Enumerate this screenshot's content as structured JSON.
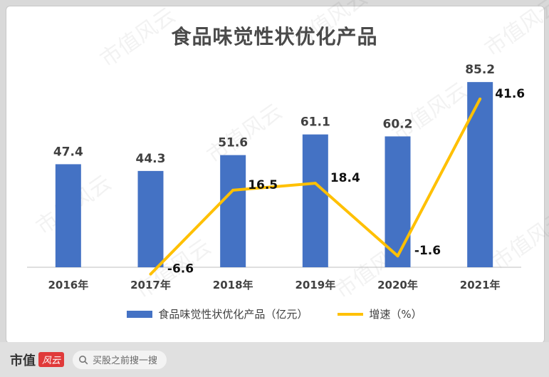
{
  "chart_data": {
    "type": "bar",
    "title": "食品味觉性状优化产品",
    "categories": [
      "2016年",
      "2017年",
      "2018年",
      "2019年",
      "2020年",
      "2021年"
    ],
    "series": [
      {
        "name": "食品味觉性状优化产品（亿元）",
        "type": "bar",
        "color": "#4472c4",
        "values": [
          47.4,
          44.3,
          51.6,
          61.1,
          60.2,
          85.2
        ],
        "labels": [
          "47.4",
          "44.3",
          "51.6",
          "61.1",
          "60.2",
          "85.2"
        ]
      },
      {
        "name": "增速（%）",
        "type": "line",
        "color": "#ffc000",
        "values": [
          null,
          -6.6,
          16.5,
          18.4,
          -1.6,
          41.6
        ],
        "labels": [
          "",
          "-6.6",
          "16.5",
          "18.4",
          "-1.6",
          "41.6"
        ]
      }
    ],
    "grid": false,
    "legend": "bottom"
  },
  "footer": {
    "brand": "市值",
    "brand_logo": "风云",
    "search_placeholder": "买股之前搜一搜",
    "search_icon": "search-icon"
  },
  "watermark": "市值风云"
}
